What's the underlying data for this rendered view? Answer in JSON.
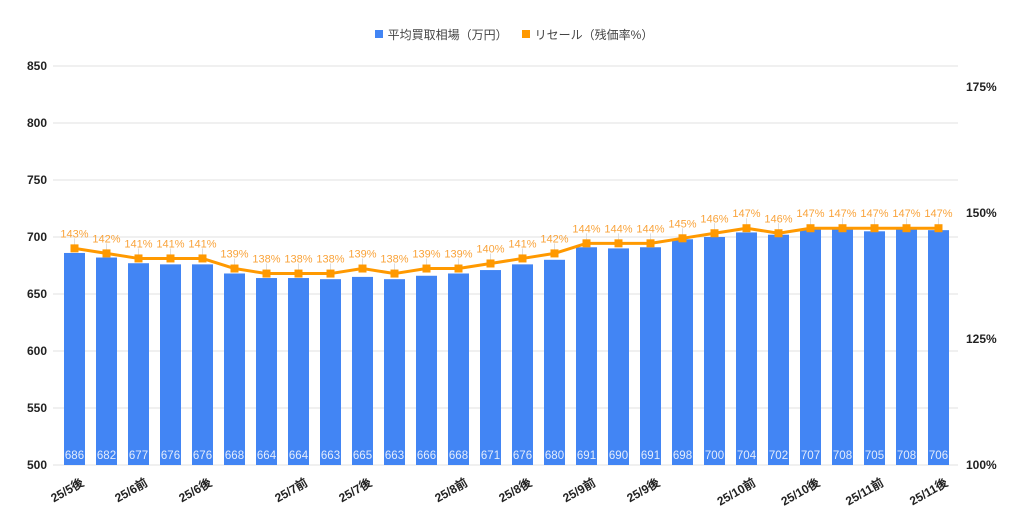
{
  "legend": {
    "items": [
      {
        "label": "平均買取相場（万円）",
        "color": "#4285F4",
        "icon": "square-swatch-icon"
      },
      {
        "label": "リセール（残価率%）",
        "color": "#FF9900",
        "icon": "square-swatch-icon"
      }
    ]
  },
  "colors": {
    "bar": "#4285F4",
    "line": "#FF9900",
    "line_label": "#F9A33A",
    "grid": "#E0E0E0",
    "axis_text": "#222222"
  },
  "chart_data": {
    "type": "bar",
    "title": "",
    "xlabel": "",
    "ylabel": "",
    "legend_position": "top",
    "grid": true,
    "categories": [
      "25/5後",
      "",
      "25/6前",
      "",
      "25/6後",
      "",
      "",
      "25/7前",
      "",
      "25/7後",
      "",
      "",
      "25/8前",
      "",
      "25/8後",
      "",
      "25/9前",
      "",
      "25/9後",
      "",
      "",
      "25/10前",
      "",
      "25/10後",
      "",
      "25/11前",
      "",
      "25/11後"
    ],
    "series": [
      {
        "name": "平均買取相場（万円）",
        "chart_type": "bar",
        "axis": "left",
        "values": [
          686,
          682,
          677,
          676,
          676,
          668,
          664,
          664,
          663,
          665,
          663,
          666,
          668,
          671,
          676,
          680,
          691,
          690,
          691,
          698,
          700,
          704,
          702,
          707,
          708,
          705,
          708,
          706
        ]
      },
      {
        "name": "リセール（残価率%）",
        "chart_type": "line",
        "axis": "right",
        "unit": "%",
        "values": [
          143,
          142,
          141,
          141,
          141,
          139,
          138,
          138,
          138,
          139,
          138,
          139,
          139,
          140,
          141,
          142,
          144,
          144,
          144,
          145,
          146,
          147,
          146,
          147,
          147,
          147,
          147,
          147
        ]
      }
    ],
    "y_left": {
      "min": 500,
      "max": 850,
      "ticks": [
        500,
        550,
        600,
        650,
        700,
        750,
        800,
        850
      ]
    },
    "y_right": {
      "min": 100,
      "max": 179.2,
      "ticks": [
        100,
        125,
        150,
        175
      ],
      "tick_labels": [
        "100%",
        "125%",
        "150%",
        "175%"
      ]
    }
  }
}
